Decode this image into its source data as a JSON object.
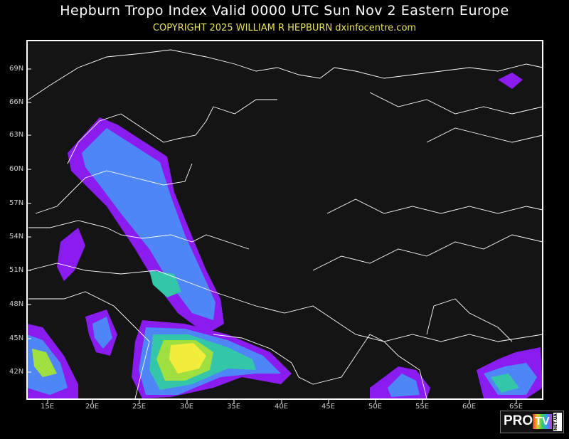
{
  "header": {
    "title": "Hepburn Tropo Index Valid 0000 UTC Sun Nov 2 Eastern Europe",
    "copyright": "COPYRIGHT 2025   WILLIAM R HEPBURN   dxinfocentre.com"
  },
  "map": {
    "latitude_labels": [
      "69N",
      "66N",
      "63N",
      "60N",
      "57N",
      "54N",
      "51N",
      "48N",
      "45N",
      "42N"
    ],
    "longitude_labels": [
      "15E",
      "20E",
      "25E",
      "30E",
      "35E",
      "40E",
      "45E",
      "50E",
      "55E",
      "60E",
      "65E"
    ],
    "index_colors": {
      "low": "#8a1cf0",
      "moderate": "#4f86f7",
      "elevated": "#33c6a8",
      "high": "#9fe040",
      "very_high": "#f2ec3a",
      "background": "#141414",
      "borders": "#ffffff"
    }
  },
  "watermark": {
    "brand": "PRO TV",
    "domain": "NET.UA"
  }
}
